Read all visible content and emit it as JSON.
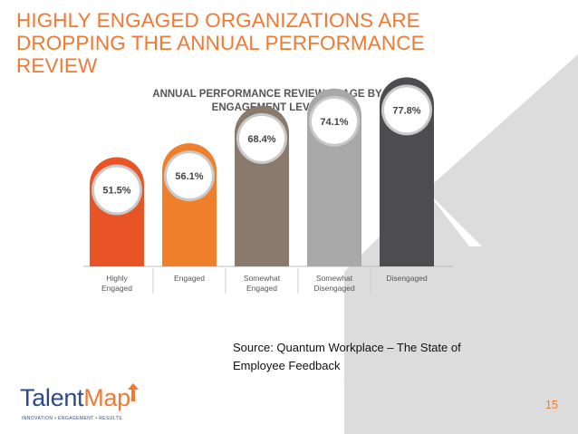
{
  "slide": {
    "title_lines": [
      "HIGHLY ENGAGED ORGANIZATIONS ARE",
      "DROPPING THE ANNUAL PERFORMANCE",
      "REVIEW"
    ],
    "source_lines": [
      "Source:  Quantum Workplace – The State of",
      "Employee Feedback"
    ],
    "page_number": "15",
    "logo": {
      "part1": "Talent",
      "part2": "Map",
      "tagline": "INNOVATION • ENGAGEMENT • RESULTS"
    }
  },
  "colors": {
    "title": "#ef7a33",
    "watermark": "#d6d6d6",
    "circle_ring": "#c9c9c9",
    "bars": [
      "#e85425",
      "#f07f2c",
      "#8a7a6d",
      "#a8a8a8",
      "#4d4d4f"
    ]
  },
  "chart_data": {
    "type": "bar",
    "title_lines": [
      "ANNUAL PERFORMANCE REVIEW USAGE BY",
      "ENGAGEMENT LEVEL"
    ],
    "categories": [
      [
        "Highly",
        "Engaged"
      ],
      [
        "Engaged"
      ],
      [
        "Somewhat",
        "Engaged"
      ],
      [
        "Somewhat",
        "Disengaged"
      ],
      [
        "Disengaged"
      ]
    ],
    "values": [
      51.5,
      56.1,
      68.4,
      74.1,
      77.8
    ],
    "value_labels": [
      "51.5%",
      "56.1%",
      "68.4%",
      "74.1%",
      "77.8%"
    ],
    "unit": "%",
    "ylim": [
      0,
      100
    ]
  }
}
